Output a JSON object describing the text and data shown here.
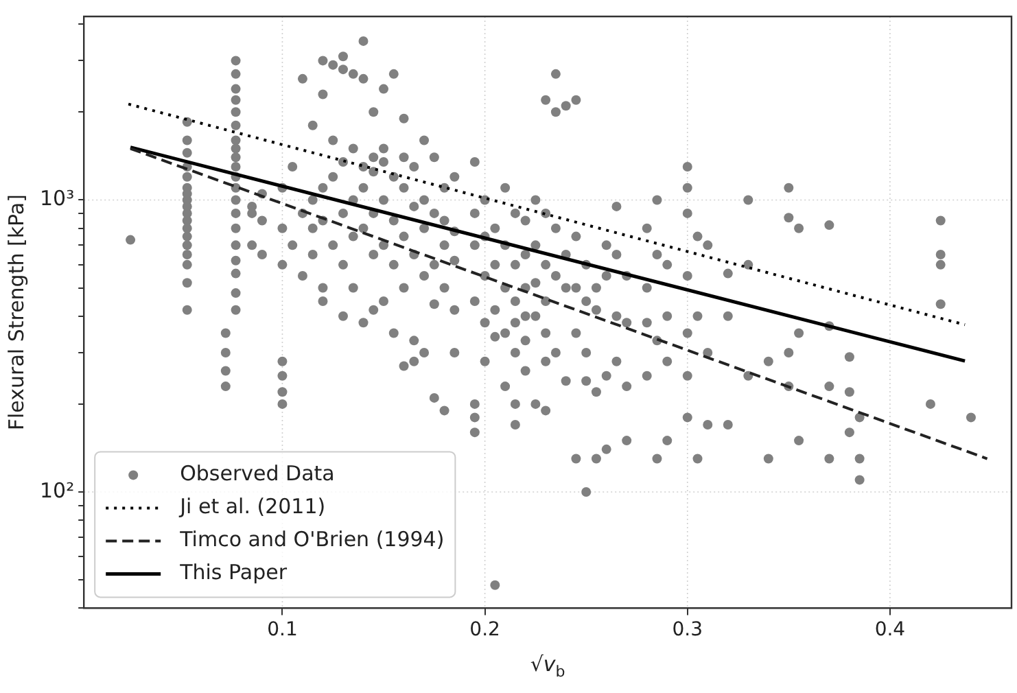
{
  "chart_data": {
    "type": "scatter",
    "xlabel": "√v$_{b}$",
    "ylabel": "Flexural Strength [kPa]",
    "xlim": [
      0.002,
      0.46
    ],
    "xticks": [
      0.1,
      0.2,
      0.3,
      0.4
    ],
    "ylim": [
      40,
      4250
    ],
    "yticks": [
      {
        "value": 40,
        "label": null
      },
      {
        "value": 50,
        "label": null
      },
      {
        "value": 60,
        "label": null
      },
      {
        "value": 70,
        "label": null
      },
      {
        "value": 80,
        "label": null
      },
      {
        "value": 90,
        "label": null
      },
      {
        "value": 100,
        "label": "10²"
      },
      {
        "value": 200,
        "label": null
      },
      {
        "value": 300,
        "label": null
      },
      {
        "value": 400,
        "label": null
      },
      {
        "value": 500,
        "label": null
      },
      {
        "value": 600,
        "label": null
      },
      {
        "value": 700,
        "label": null
      },
      {
        "value": 800,
        "label": null
      },
      {
        "value": 900,
        "label": null
      },
      {
        "value": 1000,
        "label": "10³"
      },
      {
        "value": 2000,
        "label": null
      },
      {
        "value": 3000,
        "label": null
      },
      {
        "value": 4000,
        "label": null
      }
    ],
    "log": "y",
    "grid": true,
    "legend": "bottom left",
    "series": [
      {
        "name": "Observed Data",
        "type": "scatter",
        "marker": "circle",
        "color": "#808080",
        "x": [
          0.025,
          0.053,
          0.053,
          0.053,
          0.053,
          0.053,
          0.053,
          0.053,
          0.053,
          0.053,
          0.053,
          0.053,
          0.053,
          0.053,
          0.053,
          0.053,
          0.053,
          0.053,
          0.053,
          0.077,
          0.077,
          0.077,
          0.077,
          0.077,
          0.077,
          0.077,
          0.077,
          0.077,
          0.077,
          0.077,
          0.077,
          0.077,
          0.077,
          0.077,
          0.077,
          0.077,
          0.077,
          0.077,
          0.077,
          0.072,
          0.072,
          0.072,
          0.072,
          0.085,
          0.085,
          0.085,
          0.09,
          0.09,
          0.09,
          0.1,
          0.1,
          0.1,
          0.1,
          0.1,
          0.1,
          0.1,
          0.105,
          0.105,
          0.11,
          0.11,
          0.11,
          0.115,
          0.115,
          0.115,
          0.115,
          0.12,
          0.12,
          0.12,
          0.12,
          0.12,
          0.12,
          0.125,
          0.125,
          0.125,
          0.125,
          0.13,
          0.13,
          0.13,
          0.13,
          0.13,
          0.13,
          0.135,
          0.135,
          0.135,
          0.135,
          0.135,
          0.14,
          0.14,
          0.14,
          0.14,
          0.14,
          0.14,
          0.145,
          0.145,
          0.145,
          0.145,
          0.145,
          0.145,
          0.15,
          0.15,
          0.15,
          0.15,
          0.15,
          0.15,
          0.155,
          0.155,
          0.155,
          0.155,
          0.155,
          0.16,
          0.16,
          0.16,
          0.16,
          0.16,
          0.16,
          0.165,
          0.165,
          0.165,
          0.165,
          0.165,
          0.17,
          0.17,
          0.17,
          0.17,
          0.17,
          0.175,
          0.175,
          0.175,
          0.175,
          0.175,
          0.18,
          0.18,
          0.18,
          0.18,
          0.18,
          0.185,
          0.185,
          0.185,
          0.185,
          0.185,
          0.195,
          0.195,
          0.195,
          0.195,
          0.195,
          0.195,
          0.195,
          0.2,
          0.2,
          0.2,
          0.2,
          0.2,
          0.205,
          0.205,
          0.205,
          0.205,
          0.205,
          0.21,
          0.21,
          0.21,
          0.21,
          0.21,
          0.215,
          0.215,
          0.215,
          0.215,
          0.215,
          0.215,
          0.215,
          0.22,
          0.22,
          0.22,
          0.22,
          0.22,
          0.22,
          0.225,
          0.225,
          0.225,
          0.225,
          0.225,
          0.23,
          0.23,
          0.23,
          0.23,
          0.23,
          0.23,
          0.23,
          0.235,
          0.235,
          0.235,
          0.235,
          0.235,
          0.24,
          0.24,
          0.24,
          0.24,
          0.245,
          0.245,
          0.245,
          0.245,
          0.245,
          0.25,
          0.25,
          0.25,
          0.25,
          0.25,
          0.255,
          0.255,
          0.255,
          0.255,
          0.26,
          0.26,
          0.26,
          0.26,
          0.265,
          0.265,
          0.265,
          0.265,
          0.27,
          0.27,
          0.27,
          0.27,
          0.28,
          0.28,
          0.28,
          0.28,
          0.285,
          0.285,
          0.285,
          0.285,
          0.29,
          0.29,
          0.29,
          0.29,
          0.3,
          0.3,
          0.3,
          0.3,
          0.3,
          0.3,
          0.3,
          0.305,
          0.305,
          0.305,
          0.31,
          0.31,
          0.31,
          0.32,
          0.32,
          0.32,
          0.33,
          0.33,
          0.33,
          0.34,
          0.34,
          0.35,
          0.35,
          0.35,
          0.35,
          0.355,
          0.355,
          0.355,
          0.37,
          0.37,
          0.37,
          0.37,
          0.38,
          0.38,
          0.38,
          0.385,
          0.385,
          0.385,
          0.42,
          0.425,
          0.425,
          0.425,
          0.425,
          0.44
        ],
        "values": [
          730,
          1850,
          1600,
          1450,
          1300,
          1200,
          1100,
          1050,
          1000,
          950,
          900,
          850,
          800,
          750,
          700,
          650,
          600,
          520,
          420,
          3000,
          2700,
          2400,
          2200,
          2000,
          1800,
          1600,
          1500,
          1400,
          1300,
          1200,
          1100,
          1000,
          900,
          800,
          700,
          620,
          560,
          480,
          420,
          350,
          300,
          260,
          230,
          900,
          950,
          700,
          850,
          1050,
          650,
          280,
          250,
          220,
          200,
          600,
          800,
          1100,
          700,
          1300,
          2600,
          550,
          900,
          1800,
          1000,
          650,
          800,
          2300,
          3000,
          1100,
          850,
          500,
          450,
          2900,
          1600,
          1200,
          700,
          2800,
          3100,
          1350,
          900,
          600,
          400,
          2700,
          1500,
          1000,
          750,
          500,
          2600,
          3500,
          1300,
          1100,
          800,
          380,
          2000,
          1400,
          1250,
          900,
          650,
          420,
          2400,
          1500,
          1350,
          1000,
          700,
          450,
          2700,
          1200,
          850,
          600,
          350,
          1900,
          1400,
          1100,
          750,
          500,
          270,
          1300,
          950,
          650,
          330,
          280,
          1600,
          1000,
          800,
          550,
          300,
          1400,
          900,
          600,
          440,
          210,
          1100,
          850,
          700,
          500,
          190,
          1200,
          780,
          620,
          420,
          300,
          1350,
          900,
          700,
          450,
          200,
          180,
          160,
          1000,
          750,
          550,
          380,
          280,
          800,
          600,
          420,
          340,
          48,
          1100,
          700,
          500,
          350,
          230,
          900,
          600,
          450,
          380,
          300,
          200,
          170,
          850,
          650,
          500,
          400,
          330,
          260,
          1000,
          700,
          520,
          400,
          200,
          900,
          600,
          450,
          350,
          280,
          190,
          2200,
          2700,
          2000,
          800,
          550,
          300,
          2100,
          650,
          500,
          240,
          2200,
          750,
          500,
          350,
          130,
          600,
          450,
          300,
          240,
          100,
          500,
          420,
          220,
          130,
          700,
          550,
          250,
          140,
          950,
          650,
          400,
          280,
          550,
          380,
          230,
          150,
          800,
          500,
          380,
          250,
          1000,
          650,
          330,
          130,
          600,
          400,
          280,
          150,
          1300,
          1100,
          900,
          550,
          350,
          250,
          180,
          750,
          400,
          130,
          700,
          300,
          170,
          560,
          400,
          170,
          1000,
          600,
          250,
          280,
          130,
          1100,
          870,
          300,
          230,
          800,
          350,
          150,
          820,
          370,
          230,
          130,
          290,
          220,
          160,
          130,
          110,
          180,
          200,
          850,
          650,
          600,
          440,
          180
        ]
      },
      {
        "name": "Ji et al. (2011)",
        "type": "line",
        "marker": "none",
        "line_style": "dotted",
        "color": "#000000",
        "x": [
          0.024,
          0.437
        ],
        "values": [
          2130,
          374
        ]
      },
      {
        "name": "Timco and O'Brien (1994)",
        "type": "line",
        "marker": "none",
        "line_style": "dashed",
        "color": "#222222",
        "x": [
          0.025,
          0.448
        ],
        "values": [
          1500,
          130
        ]
      },
      {
        "name": "This Paper",
        "type": "line",
        "marker": "none",
        "line_style": "solid",
        "color": "#000000",
        "x": [
          0.025,
          0.437
        ],
        "values": [
          1515,
          281
        ]
      }
    ]
  }
}
